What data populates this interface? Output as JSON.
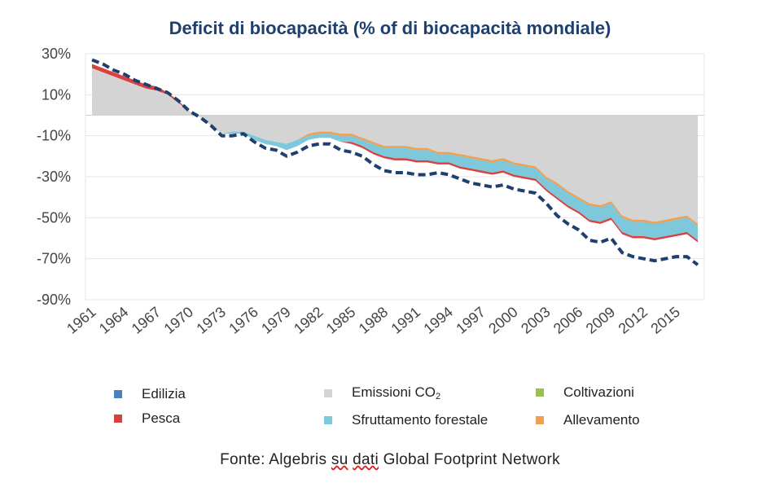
{
  "chart_data": {
    "type": "area",
    "title": "Deficit di biocapacità (% of di biocapacità mondiale)",
    "x": [
      1961,
      1962,
      1963,
      1964,
      1965,
      1966,
      1967,
      1968,
      1969,
      1970,
      1971,
      1972,
      1973,
      1974,
      1975,
      1976,
      1977,
      1978,
      1979,
      1980,
      1981,
      1982,
      1983,
      1984,
      1985,
      1986,
      1987,
      1988,
      1989,
      1990,
      1991,
      1992,
      1993,
      1994,
      1995,
      1996,
      1997,
      1998,
      1999,
      2000,
      2001,
      2002,
      2003,
      2004,
      2005,
      2006,
      2007,
      2008,
      2009,
      2010,
      2011,
      2012,
      2013,
      2014,
      2015,
      2016,
      2017
    ],
    "x_tick_labels": [
      "1961",
      "1964",
      "1967",
      "1970",
      "1973",
      "1976",
      "1979",
      "1982",
      "1985",
      "1988",
      "1991",
      "1994",
      "1997",
      "2000",
      "2003",
      "2006",
      "2009",
      "2012",
      "2015"
    ],
    "y_tick_labels": [
      "30%",
      "10%",
      "-10%",
      "-30%",
      "-50%",
      "-70%",
      "-90%"
    ],
    "ylim": [
      -90,
      30
    ],
    "grid": true,
    "series": [
      {
        "name": "Emissioni CO2",
        "color": "#d4d4d4",
        "values": [
          23,
          21,
          19,
          17,
          15,
          13,
          12,
          10,
          6,
          2,
          -1,
          -5,
          -9,
          -9,
          -9,
          -12,
          -14,
          -15,
          -17,
          -15,
          -12,
          -11,
          -11,
          -13,
          -14,
          -16,
          -19,
          -21,
          -22,
          -22,
          -23,
          -23,
          -24,
          -24,
          -26,
          -27,
          -28,
          -29,
          -28,
          -30,
          -31,
          -32,
          -37,
          -41,
          -45,
          -48,
          -52,
          -53,
          -51,
          -58,
          -60,
          -60,
          -61,
          -60,
          -59,
          -58,
          -62
        ]
      },
      {
        "name": "Pesca",
        "color": "#d94040",
        "values": [
          2,
          2,
          2,
          2,
          2,
          2,
          2,
          1,
          1,
          0,
          0,
          0,
          0,
          0,
          0,
          0,
          0,
          0,
          0,
          0,
          0,
          0,
          0,
          0,
          1,
          1,
          1,
          1,
          1,
          1,
          1,
          1,
          1,
          1,
          1,
          1,
          1,
          1,
          1,
          1,
          1,
          1,
          1,
          1,
          1,
          1,
          1,
          1,
          1,
          1,
          1,
          1,
          1,
          1,
          1,
          1,
          1
        ]
      },
      {
        "name": "Sfruttamento forestale",
        "color": "#7ec8dc",
        "values": [
          0,
          0,
          0,
          0,
          0,
          0,
          0,
          0,
          0,
          0,
          0,
          0,
          0,
          1,
          1,
          2,
          2,
          2,
          3,
          3,
          2,
          2,
          2,
          3,
          3,
          3,
          4,
          4,
          5,
          5,
          5,
          5,
          4,
          4,
          5,
          5,
          5,
          5,
          5,
          5,
          5,
          5,
          5,
          6,
          6,
          6,
          7,
          7,
          7,
          7,
          7,
          7,
          7,
          7,
          7,
          7,
          7
        ]
      },
      {
        "name": "Allevamento",
        "color": "#f0a050",
        "values": [
          0,
          0,
          0,
          0,
          0,
          0,
          0,
          0,
          0,
          0,
          0,
          0,
          0,
          0,
          0,
          0,
          0,
          0,
          0,
          0,
          1,
          1,
          1,
          1,
          1,
          1,
          1,
          1,
          1,
          1,
          1,
          1,
          1,
          1,
          1,
          1,
          1,
          1,
          1,
          1,
          1,
          1,
          1,
          1,
          1,
          1,
          1,
          1,
          1,
          1,
          1,
          1,
          1,
          1,
          1,
          1,
          1
        ]
      },
      {
        "name": "Coltivazioni",
        "color": "#9ac050",
        "values": [
          0,
          0,
          0,
          0,
          0,
          0,
          0,
          0,
          0,
          0,
          0,
          0,
          0,
          0,
          0,
          0,
          0,
          0,
          0,
          0,
          0,
          0,
          0,
          0,
          0,
          0,
          0,
          0,
          0,
          0,
          0,
          0,
          0,
          0,
          0,
          0,
          0,
          0,
          0,
          0,
          0,
          0,
          0,
          0,
          0,
          0,
          0,
          0,
          0,
          0,
          0,
          0,
          0,
          0,
          0,
          0,
          0
        ]
      },
      {
        "name": "Edilizia",
        "color": "#4a7fc0",
        "values": [
          0,
          0,
          0,
          0,
          0,
          0,
          0,
          0,
          0,
          0,
          0,
          0,
          0,
          0,
          0,
          0,
          0,
          0,
          0,
          0,
          0,
          0,
          0,
          0,
          0,
          0,
          0,
          0,
          0,
          0,
          0,
          0,
          0,
          0,
          0,
          0,
          0,
          0,
          0,
          0,
          0,
          0,
          0,
          0,
          0,
          0,
          0,
          0,
          0,
          0,
          0,
          0,
          0,
          0,
          0,
          0,
          0
        ]
      }
    ],
    "total_line": {
      "style": "dashed",
      "color": "#1f3f6e",
      "values": [
        27,
        25,
        22,
        20,
        17,
        15,
        13,
        11,
        7,
        2,
        -1,
        -5,
        -10,
        -10,
        -9,
        -13,
        -16,
        -17,
        -20,
        -18,
        -15,
        -14,
        -14,
        -17,
        -18,
        -20,
        -24,
        -27,
        -28,
        -28,
        -29,
        -29,
        -28,
        -29,
        -31,
        -33,
        -34,
        -35,
        -34,
        -36,
        -37,
        -38,
        -43,
        -49,
        -53,
        -56,
        -61,
        -62,
        -60,
        -67,
        -69,
        -70,
        -71,
        -70,
        -69,
        -69,
        -73
      ]
    }
  },
  "legend": {
    "edilizia": "Edilizia",
    "pesca": "Pesca",
    "emissioni_prefix": "Emissioni CO",
    "emissioni_sub": "2",
    "sfruttamento": "Sfruttamento forestale",
    "coltivazioni": "Coltivazioni",
    "allevamento": "Allevamento"
  },
  "source": {
    "prefix": "Fonte: Algebris ",
    "su": "su",
    "space": " ",
    "dati": "dati",
    "suffix": " Global Footprint Network"
  },
  "colors": {
    "title": "#1f3f6e",
    "edilizia": "#4a7fc0",
    "pesca": "#d94040",
    "emissioni": "#d4d4d4",
    "sfruttamento": "#7ec8dc",
    "coltivazioni": "#9ac050",
    "allevamento": "#f0a050",
    "total": "#1f3f6e"
  }
}
